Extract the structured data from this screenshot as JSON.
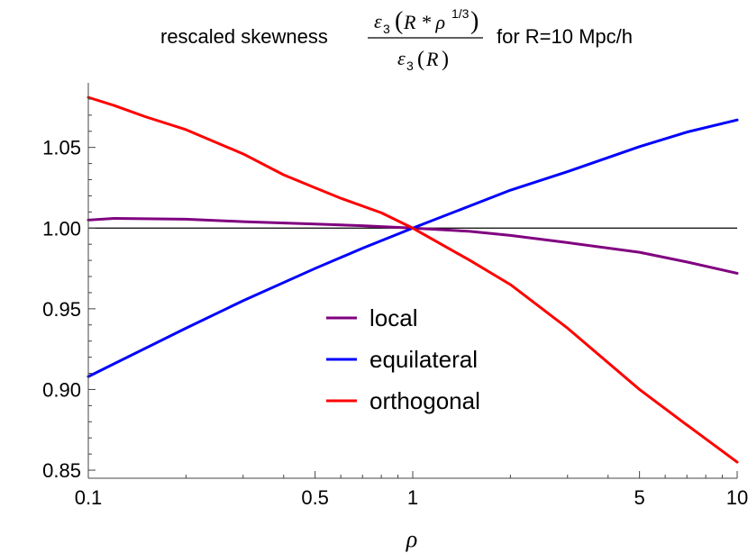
{
  "chart_data": {
    "type": "line",
    "title": {
      "prefix": "rescaled skewness",
      "numerator_symbol": "ε",
      "numerator_subscript": "3",
      "numerator_argument": "R * ρ",
      "numerator_exponent": "1/3",
      "denominator_symbol": "ε",
      "denominator_subscript": "3",
      "denominator_argument": "R",
      "suffix": "for R=10 Mpc/h"
    },
    "xlabel": "ρ",
    "ylabel": "",
    "x_scale": "log",
    "xlim": [
      0.1,
      10
    ],
    "ylim": [
      0.845,
      1.09
    ],
    "x_ticks": [
      0.1,
      0.5,
      1,
      5,
      10
    ],
    "x_tick_labels": [
      "0.1",
      "0.5",
      "1",
      "5",
      "10"
    ],
    "y_ticks": [
      0.85,
      0.9,
      0.95,
      1.0,
      1.05
    ],
    "y_tick_labels": [
      "0.85",
      "0.90",
      "0.95",
      "1.00",
      "1.05"
    ],
    "reference_line": {
      "y": 1.0,
      "color": "#000000"
    },
    "grid": false,
    "legend_position": "center",
    "series": [
      {
        "name": "local",
        "color": "#800080",
        "x": [
          0.1,
          0.12,
          0.2,
          0.3,
          0.5,
          0.7,
          1,
          1.5,
          2,
          3,
          5,
          7,
          10
        ],
        "y": [
          1.005,
          1.006,
          1.0055,
          1.004,
          1.0025,
          1.0015,
          1.0,
          0.998,
          0.9955,
          0.991,
          0.985,
          0.979,
          0.972
        ]
      },
      {
        "name": "equilateral",
        "color": "#0000ff",
        "x": [
          0.1,
          0.2,
          0.3,
          0.5,
          0.7,
          1,
          2,
          3,
          5,
          7,
          10
        ],
        "y": [
          0.908,
          0.938,
          0.955,
          0.975,
          0.9875,
          1.0,
          1.0235,
          1.035,
          1.0505,
          1.0595,
          1.067
        ]
      },
      {
        "name": "orthogonal",
        "color": "#ff0000",
        "x": [
          0.1,
          0.12,
          0.15,
          0.2,
          0.3,
          0.4,
          0.5,
          0.6,
          0.8,
          1,
          1.5,
          2,
          3,
          5,
          7,
          10
        ],
        "y": [
          1.081,
          1.076,
          1.069,
          1.061,
          1.046,
          1.033,
          1.025,
          1.0185,
          1.0095,
          1.0,
          0.98,
          0.965,
          0.938,
          0.9,
          0.878,
          0.855
        ]
      }
    ]
  }
}
